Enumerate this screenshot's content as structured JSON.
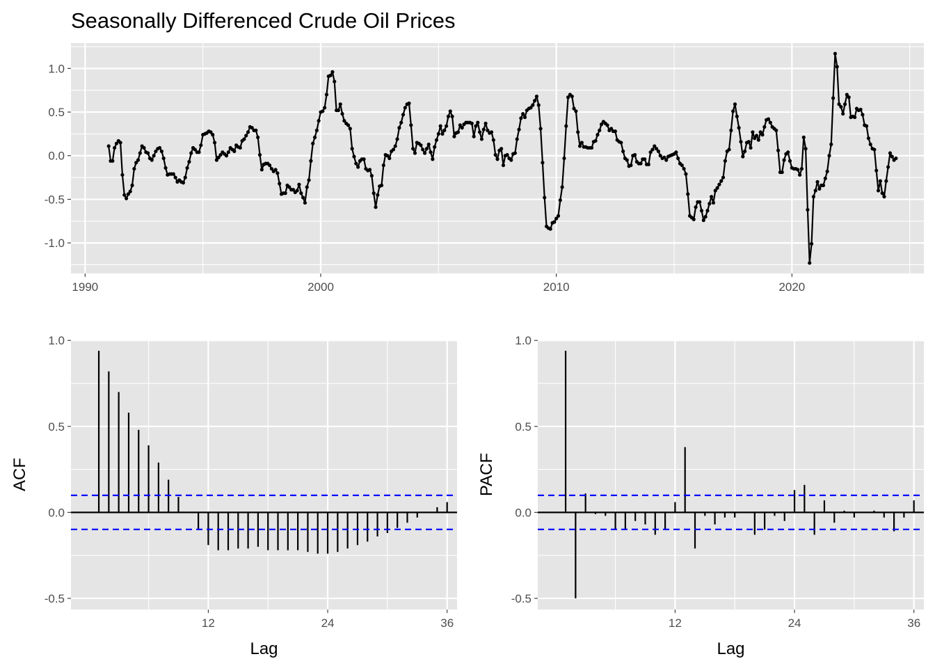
{
  "title": "Seasonally Differenced Crude Oil Prices",
  "colors": {
    "panel": "#e5e5e5",
    "grid": "#ffffff",
    "series": "#000000",
    "ci": "#0000ff"
  },
  "chart_data": [
    {
      "id": "timeseries",
      "type": "line",
      "title": "Seasonally Differenced Crude Oil Prices",
      "xlabel": "",
      "ylabel": "",
      "xlim": [
        1989.4,
        2025.6
      ],
      "ylim": [
        -1.35,
        1.29
      ],
      "x_ticks": [
        1990,
        2000,
        2010,
        2020
      ],
      "x_tick_labels": [
        "1990",
        "2000",
        "2010",
        "2020"
      ],
      "y_ticks": [
        -1.0,
        -0.5,
        0.0,
        0.5,
        1.0
      ],
      "y_tick_labels": [
        "-1.0",
        "-0.5",
        "0.0",
        "0.5",
        "1.0"
      ],
      "grid": true,
      "markers": true,
      "start": 1991.0,
      "frequency": 12,
      "values": [
        0.11,
        -0.06,
        -0.06,
        0.09,
        0.14,
        0.17,
        0.15,
        -0.22,
        -0.45,
        -0.49,
        -0.44,
        -0.41,
        -0.34,
        -0.15,
        -0.08,
        -0.05,
        0.03,
        0.11,
        0.09,
        0.04,
        0.03,
        -0.03,
        -0.05,
        0.0,
        0.05,
        0.08,
        0.09,
        0.05,
        -0.03,
        -0.14,
        -0.22,
        -0.21,
        -0.21,
        -0.21,
        -0.25,
        -0.3,
        -0.28,
        -0.3,
        -0.31,
        -0.25,
        -0.14,
        -0.07,
        0.03,
        0.09,
        0.07,
        0.04,
        0.04,
        0.12,
        0.24,
        0.25,
        0.26,
        0.28,
        0.27,
        0.24,
        0.15,
        -0.05,
        -0.02,
        0.01,
        0.04,
        0.02,
        0.0,
        0.04,
        0.09,
        0.07,
        0.05,
        0.12,
        0.1,
        0.09,
        0.17,
        0.19,
        0.23,
        0.27,
        0.33,
        0.32,
        0.29,
        0.29,
        0.21,
        0.01,
        -0.16,
        -0.1,
        -0.09,
        -0.09,
        -0.11,
        -0.15,
        -0.18,
        -0.16,
        -0.2,
        -0.32,
        -0.44,
        -0.43,
        -0.43,
        -0.34,
        -0.36,
        -0.39,
        -0.39,
        -0.42,
        -0.4,
        -0.33,
        -0.43,
        -0.48,
        -0.54,
        -0.36,
        -0.28,
        -0.06,
        0.14,
        0.21,
        0.29,
        0.4,
        0.5,
        0.51,
        0.55,
        0.7,
        0.91,
        0.92,
        0.96,
        0.85,
        0.52,
        0.52,
        0.59,
        0.48,
        0.4,
        0.37,
        0.35,
        0.31,
        0.08,
        -0.01,
        -0.09,
        -0.13,
        -0.06,
        -0.04,
        -0.04,
        -0.15,
        -0.17,
        -0.16,
        -0.23,
        -0.43,
        -0.59,
        -0.45,
        -0.35,
        -0.34,
        -0.11,
        0.01,
        0.0,
        -0.03,
        0.05,
        0.07,
        0.11,
        0.19,
        0.32,
        0.38,
        0.47,
        0.55,
        0.59,
        0.6,
        0.35,
        0.08,
        0.03,
        0.15,
        0.14,
        0.12,
        0.07,
        0.03,
        0.08,
        0.13,
        0.04,
        -0.04,
        0.1,
        0.18,
        0.25,
        0.34,
        0.25,
        0.29,
        0.34,
        0.45,
        0.51,
        0.45,
        0.22,
        0.26,
        0.27,
        0.35,
        0.32,
        0.36,
        0.38,
        0.38,
        0.38,
        0.37,
        0.22,
        0.34,
        0.38,
        0.27,
        0.19,
        0.3,
        0.37,
        0.29,
        0.26,
        0.27,
        0.18,
        0.01,
        -0.04,
        0.06,
        0.08,
        -0.11,
        0.0,
        0.01,
        -0.03,
        -0.05,
        0.02,
        0.03,
        0.19,
        0.3,
        0.43,
        0.48,
        0.44,
        0.52,
        0.54,
        0.55,
        0.58,
        0.63,
        0.68,
        0.58,
        0.31,
        -0.08,
        -0.48,
        -0.81,
        -0.83,
        -0.84,
        -0.77,
        -0.76,
        -0.72,
        -0.69,
        -0.51,
        -0.36,
        -0.03,
        0.34,
        0.67,
        0.7,
        0.68,
        0.54,
        0.51,
        0.27,
        0.11,
        0.15,
        0.1,
        0.1,
        0.09,
        0.09,
        0.09,
        0.16,
        0.17,
        0.24,
        0.29,
        0.36,
        0.39,
        0.37,
        0.35,
        0.29,
        0.31,
        0.28,
        0.28,
        0.18,
        0.16,
        0.15,
        0.05,
        -0.03,
        -0.05,
        -0.12,
        -0.11,
        0.0,
        0.01,
        -0.07,
        -0.09,
        -0.09,
        -0.04,
        -0.04,
        -0.1,
        -0.1,
        0.04,
        0.07,
        0.11,
        0.08,
        0.05,
        0.0,
        -0.03,
        -0.02,
        -0.05,
        -0.01,
        0.0,
        0.01,
        0.02,
        0.04,
        -0.03,
        -0.09,
        -0.11,
        -0.15,
        -0.21,
        -0.44,
        -0.69,
        -0.71,
        -0.73,
        -0.59,
        -0.53,
        -0.53,
        -0.63,
        -0.74,
        -0.7,
        -0.63,
        -0.55,
        -0.47,
        -0.54,
        -0.4,
        -0.37,
        -0.33,
        -0.29,
        -0.25,
        -0.06,
        0.05,
        0.07,
        0.29,
        0.51,
        0.59,
        0.45,
        0.32,
        0.16,
        -0.01,
        0.05,
        0.15,
        0.16,
        0.09,
        0.27,
        0.2,
        0.23,
        0.18,
        0.27,
        0.24,
        0.33,
        0.41,
        0.42,
        0.38,
        0.33,
        0.31,
        0.29,
        0.06,
        -0.19,
        -0.19,
        -0.05,
        0.02,
        0.04,
        -0.06,
        -0.14,
        -0.15,
        -0.15,
        -0.16,
        -0.22,
        -0.15,
        0.21,
        0.08,
        -0.62,
        -1.23,
        -1.01,
        -0.47,
        -0.4,
        -0.3,
        -0.38,
        -0.34,
        -0.34,
        -0.26,
        -0.18,
        0.0,
        0.13,
        0.66,
        1.17,
        1.02,
        0.59,
        0.56,
        0.48,
        0.59,
        0.7,
        0.67,
        0.44,
        0.45,
        0.44,
        0.54,
        0.52,
        0.53,
        0.47,
        0.35,
        0.34,
        0.2,
        0.13,
        0.08,
        0.07,
        -0.17,
        -0.4,
        -0.29,
        -0.43,
        -0.47,
        -0.29,
        -0.13,
        0.03,
        -0.01,
        -0.05,
        -0.03
      ]
    },
    {
      "id": "acf",
      "type": "bar",
      "xlabel": "Lag",
      "ylabel": "ACF",
      "xlim": [
        -1.8,
        37.0
      ],
      "ylim": [
        -0.565,
        1.005
      ],
      "x_ticks": [
        12,
        24,
        36
      ],
      "x_tick_labels": [
        "12",
        "24",
        "36"
      ],
      "y_ticks": [
        -0.5,
        0.0,
        0.5,
        1.0
      ],
      "y_tick_labels": [
        "-0.5",
        "0.0",
        "0.5",
        "1.0"
      ],
      "grid": true,
      "confidence_bounds": [
        -0.099,
        0.099
      ],
      "lags": [
        1,
        2,
        3,
        4,
        5,
        6,
        7,
        8,
        9,
        10,
        11,
        12,
        13,
        14,
        15,
        16,
        17,
        18,
        19,
        20,
        21,
        22,
        23,
        24,
        25,
        26,
        27,
        28,
        29,
        30,
        31,
        32,
        33,
        34,
        35,
        36
      ],
      "values": [
        0.94,
        0.82,
        0.7,
        0.58,
        0.48,
        0.39,
        0.29,
        0.19,
        0.09,
        -0.0,
        -0.1,
        -0.19,
        -0.22,
        -0.22,
        -0.21,
        -0.21,
        -0.2,
        -0.22,
        -0.22,
        -0.22,
        -0.22,
        -0.23,
        -0.24,
        -0.24,
        -0.23,
        -0.21,
        -0.19,
        -0.17,
        -0.14,
        -0.12,
        -0.09,
        -0.06,
        -0.03,
        0.0,
        0.03,
        0.06
      ]
    },
    {
      "id": "pacf",
      "type": "bar",
      "xlabel": "Lag",
      "ylabel": "PACF",
      "xlim": [
        -1.8,
        37.0
      ],
      "ylim": [
        -0.565,
        1.005
      ],
      "x_ticks": [
        12,
        24,
        36
      ],
      "x_tick_labels": [
        "12",
        "24",
        "36"
      ],
      "y_ticks": [
        -0.5,
        0.0,
        0.5,
        1.0
      ],
      "y_tick_labels": [
        "-0.5",
        "0.0",
        "0.5",
        "1.0"
      ],
      "grid": true,
      "confidence_bounds": [
        -0.099,
        0.099
      ],
      "lags": [
        1,
        2,
        3,
        4,
        5,
        6,
        7,
        8,
        9,
        10,
        11,
        12,
        13,
        14,
        15,
        16,
        17,
        18,
        19,
        20,
        21,
        22,
        23,
        24,
        25,
        26,
        27,
        28,
        29,
        30,
        31,
        32,
        33,
        34,
        35,
        36
      ],
      "values": [
        0.94,
        -0.5,
        0.11,
        -0.01,
        -0.02,
        -0.1,
        -0.1,
        -0.05,
        -0.07,
        -0.13,
        -0.1,
        0.06,
        0.38,
        -0.21,
        -0.02,
        -0.07,
        -0.03,
        -0.03,
        0.0,
        -0.13,
        -0.1,
        -0.02,
        -0.05,
        0.13,
        0.16,
        -0.13,
        0.07,
        -0.06,
        0.01,
        -0.03,
        0.0,
        0.01,
        -0.03,
        -0.11,
        -0.03,
        0.07
      ]
    }
  ]
}
